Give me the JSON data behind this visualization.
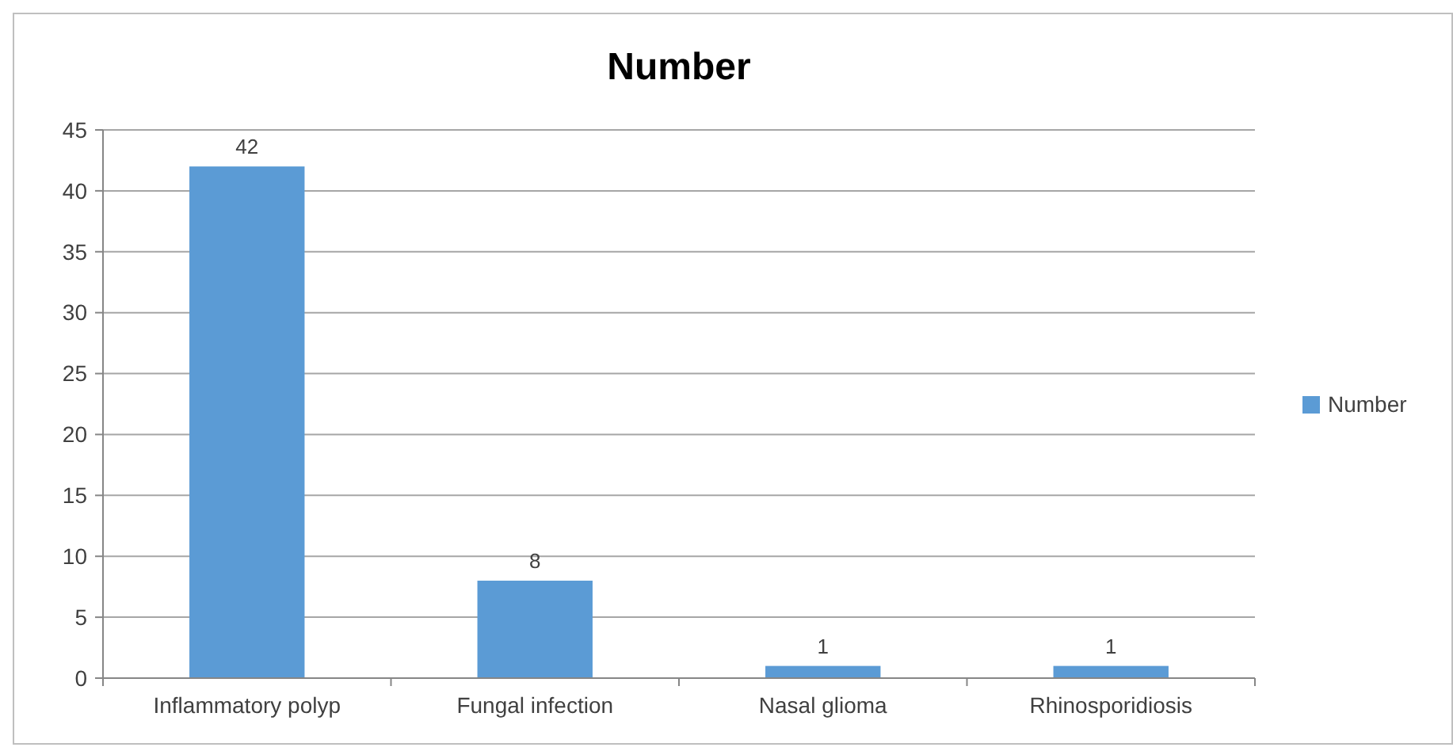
{
  "chart_data": {
    "type": "bar",
    "title": "Number",
    "categories": [
      "Inflammatory polyp",
      "Fungal infection",
      "Nasal glioma",
      "Rhinosporidiosis"
    ],
    "series": [
      {
        "name": "Number",
        "color": "#5b9bd5",
        "values": [
          42,
          8,
          1,
          1
        ]
      }
    ],
    "ylim": [
      0,
      45
    ],
    "yticks": [
      0,
      5,
      10,
      15,
      20,
      25,
      30,
      35,
      40,
      45
    ],
    "grid": "y",
    "legend": "right",
    "data_labels": true
  }
}
